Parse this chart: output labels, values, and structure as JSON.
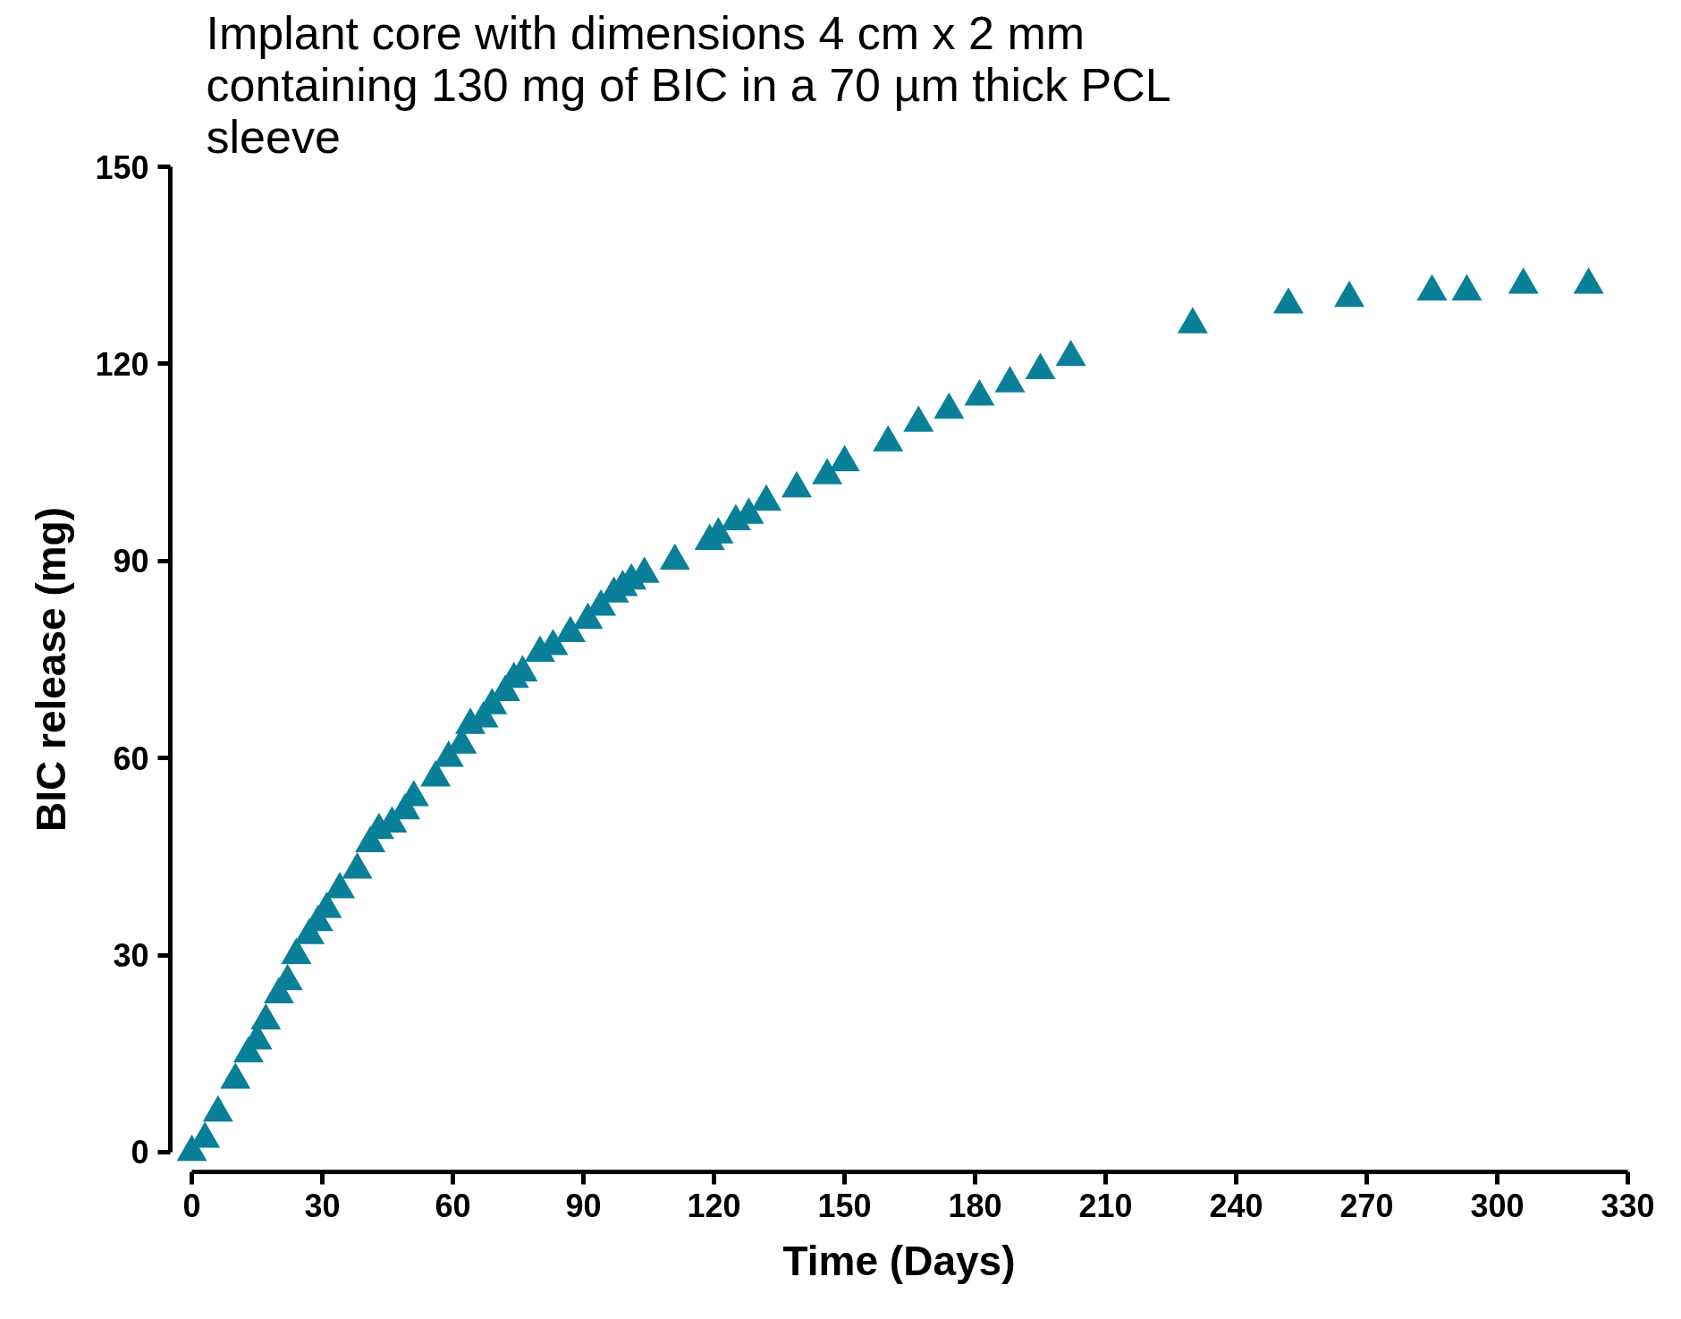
{
  "chart_data": {
    "type": "scatter",
    "title": "Implant core with dimensions 4 cm x 2 mm containing 130 mg of BIC in a 70 µm thick PCL sleeve",
    "xlabel": "Time (Days)",
    "ylabel": "BIC release (mg)",
    "marker": "triangle",
    "grid": false,
    "xlim": [
      0,
      330
    ],
    "xticks": [
      0,
      30,
      60,
      90,
      120,
      150,
      180,
      210,
      240,
      270,
      300,
      330
    ],
    "ylim": [
      0,
      150
    ],
    "yticks": [
      0,
      30,
      60,
      90,
      120,
      150
    ],
    "series": [
      {
        "color": "#0a7f98",
        "x": [
          0,
          3,
          6,
          10,
          13,
          15,
          17,
          20,
          22,
          24,
          27,
          29,
          31,
          34,
          38,
          41,
          43,
          46,
          49,
          51,
          56,
          59,
          62,
          64,
          67,
          69,
          72,
          74,
          76,
          80,
          83,
          87,
          91,
          94,
          97,
          99,
          101,
          104,
          111,
          119,
          121,
          125,
          128,
          132,
          139,
          146,
          150,
          160,
          167,
          174,
          181,
          188,
          195,
          202,
          230,
          252,
          266,
          285,
          293,
          306,
          321
        ],
        "values": [
          0,
          2,
          6,
          11,
          15,
          17,
          20,
          24,
          26,
          30,
          33,
          35,
          37,
          40,
          43,
          47,
          49,
          50,
          52,
          54,
          57,
          60,
          62,
          65,
          66,
          68,
          70,
          72,
          73,
          76,
          77,
          79,
          81,
          83,
          85,
          86,
          87,
          88,
          90,
          93,
          94,
          96,
          97,
          99,
          101,
          103,
          105,
          108,
          111,
          113,
          115,
          117,
          119,
          121,
          126,
          129,
          130,
          131,
          131,
          132,
          132
        ]
      }
    ]
  }
}
